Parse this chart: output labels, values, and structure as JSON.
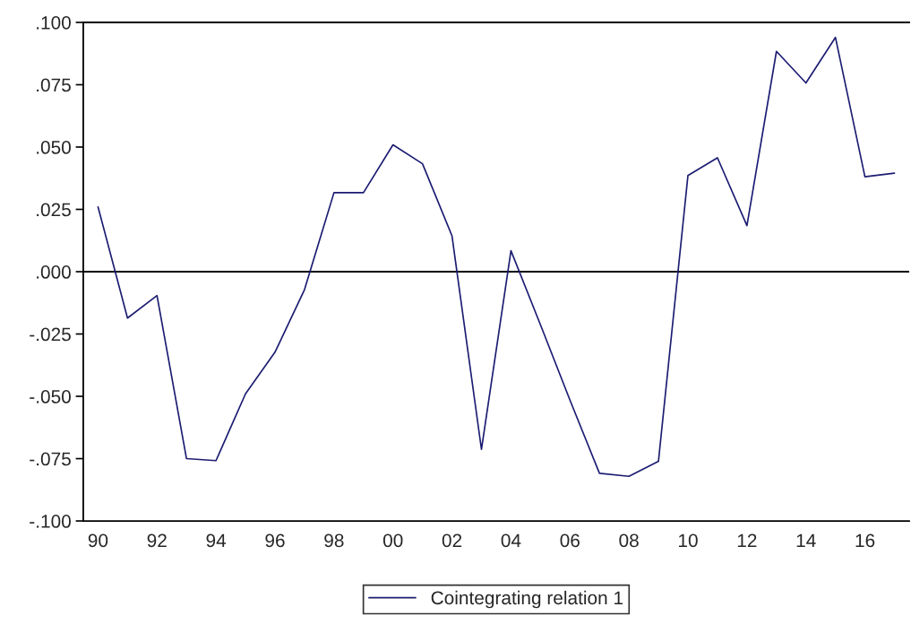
{
  "chart_data": {
    "type": "line",
    "categories": [
      "90",
      null,
      "92",
      null,
      "94",
      null,
      "96",
      null,
      "98",
      null,
      "00",
      null,
      "02",
      null,
      "04",
      null,
      "06",
      null,
      "08",
      null,
      "10",
      null,
      "12",
      null,
      "14",
      null,
      "16",
      null
    ],
    "series": [
      {
        "name": "Cointegrating relation 1",
        "color": "#1c1c72",
        "values": [
          0.026,
          -0.0186,
          -0.0096,
          -0.075,
          -0.0758,
          -0.049,
          -0.0323,
          -0.0072,
          0.0317,
          0.0317,
          0.0509,
          0.0433,
          0.0144,
          -0.0713,
          0.0084,
          -0.0213,
          -0.0515,
          -0.0809,
          -0.0821,
          -0.0761,
          0.0386,
          0.0457,
          0.0185,
          0.0884,
          0.0757,
          0.094,
          0.0381,
          0.0395
        ]
      }
    ],
    "ylim": [
      -0.1,
      0.1
    ],
    "yticks": [
      {
        "value": -0.1,
        "label": "-.100"
      },
      {
        "value": -0.075,
        "label": "-.075"
      },
      {
        "value": -0.05,
        "label": "-.050"
      },
      {
        "value": -0.025,
        "label": "-.025"
      },
      {
        "value": 0,
        "label": ".000"
      },
      {
        "value": 0.025,
        "label": ".025"
      },
      {
        "value": 0.05,
        "label": ".050"
      },
      {
        "value": 0.075,
        "label": ".075"
      },
      {
        "value": 0.1,
        "label": ".100"
      }
    ],
    "ref_lines": [
      {
        "axis": "y",
        "value": 0,
        "color": "#000000"
      }
    ],
    "grid": false,
    "legend": "bottom",
    "line_style": "solid",
    "marker": "none"
  }
}
